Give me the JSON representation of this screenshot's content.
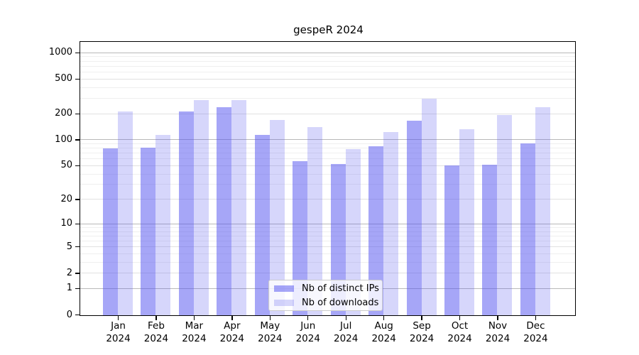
{
  "title": "gespeR 2024",
  "colors": {
    "ips_bar": "rgba(85,85,240,0.52)",
    "downloads_bar": "rgba(85,85,240,0.24)",
    "grid_power10": "#b9b9b9",
    "grid_labeled": "#e1e1e1",
    "grid_minor": "#efefef",
    "axis": "#000000",
    "legend_border": "#cccccc"
  },
  "legend": {
    "items": [
      {
        "label": "Nb of distinct IPs",
        "color_key": "ips_bar"
      },
      {
        "label": "Nb of downloads",
        "color_key": "downloads_bar"
      }
    ]
  },
  "chart_data": {
    "type": "bar",
    "title": "gespeR 2024",
    "categories": [
      "Jan 2024",
      "Feb 2024",
      "Mar 2024",
      "Apr 2024",
      "May 2024",
      "Jun 2024",
      "Jul 2024",
      "Aug 2024",
      "Sep 2024",
      "Oct 2024",
      "Nov 2024",
      "Dec 2024"
    ],
    "series": [
      {
        "name": "Nb of distinct IPs",
        "values": [
          78,
          81,
          210,
          235,
          112,
          56,
          52,
          84,
          163,
          50,
          51,
          90
        ]
      },
      {
        "name": "Nb of downloads",
        "values": [
          210,
          113,
          285,
          286,
          168,
          140,
          77,
          122,
          295,
          132,
          193,
          233
        ]
      }
    ],
    "xlabel": "",
    "ylabel": "",
    "yscale": "log1p",
    "ylim": [
      0,
      1300
    ],
    "y_tick_values": [
      0,
      1,
      2,
      5,
      10,
      20,
      50,
      100,
      200,
      500,
      1000
    ],
    "y_grid_power10": [
      1,
      10,
      100,
      1000
    ],
    "y_grid_labeled": [
      2,
      5,
      20,
      50,
      200,
      500
    ],
    "y_grid_minor": [
      3,
      4,
      6,
      7,
      8,
      9,
      30,
      40,
      60,
      70,
      80,
      90,
      300,
      400,
      600,
      700,
      800,
      900
    ],
    "grid": "on",
    "legend_position": "lower center"
  }
}
